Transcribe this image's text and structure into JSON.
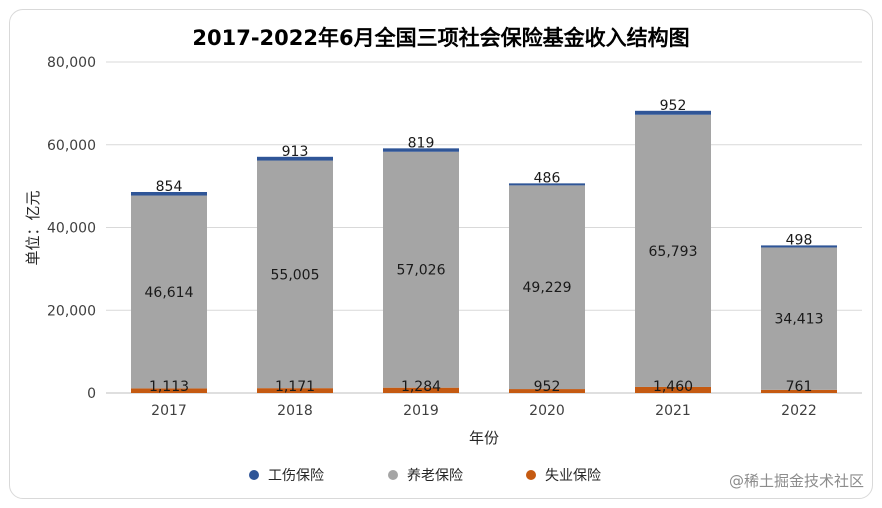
{
  "chart_data": {
    "type": "bar",
    "stacked": true,
    "title": "2017-2022年6月全国三项社会保险基金收入结构图",
    "xlabel": "年份",
    "ylabel": "单位：亿元",
    "categories": [
      "2017",
      "2018",
      "2019",
      "2020",
      "2021",
      "2022"
    ],
    "ylim": [
      0,
      80000
    ],
    "yticks": [
      0,
      20000,
      40000,
      60000,
      80000
    ],
    "ytick_labels": [
      "0",
      "20,000",
      "40,000",
      "60,000",
      "80,000"
    ],
    "grid": true,
    "legend_position": "bottom",
    "series": [
      {
        "name": "失业保险",
        "color": "#c55a11",
        "values": [
          1113,
          1171,
          1284,
          952,
          1460,
          761
        ],
        "labels": [
          "1,113",
          "1,171",
          "1,284",
          "952",
          "1,460",
          "761"
        ]
      },
      {
        "name": "养老保险",
        "color": "#a5a5a5",
        "values": [
          46614,
          55005,
          57026,
          49229,
          65793,
          34413
        ],
        "labels": [
          "46,614",
          "55,005",
          "57,026",
          "49,229",
          "65,793",
          "34,413"
        ]
      },
      {
        "name": "工伤保险",
        "color": "#2f5597",
        "values": [
          854,
          913,
          819,
          486,
          952,
          498
        ],
        "labels": [
          "854",
          "913",
          "819",
          "486",
          "952",
          "498"
        ]
      }
    ],
    "legend_order": [
      "工伤保险",
      "养老保险",
      "失业保险"
    ]
  },
  "watermark": "@稀土掘金技术社区"
}
